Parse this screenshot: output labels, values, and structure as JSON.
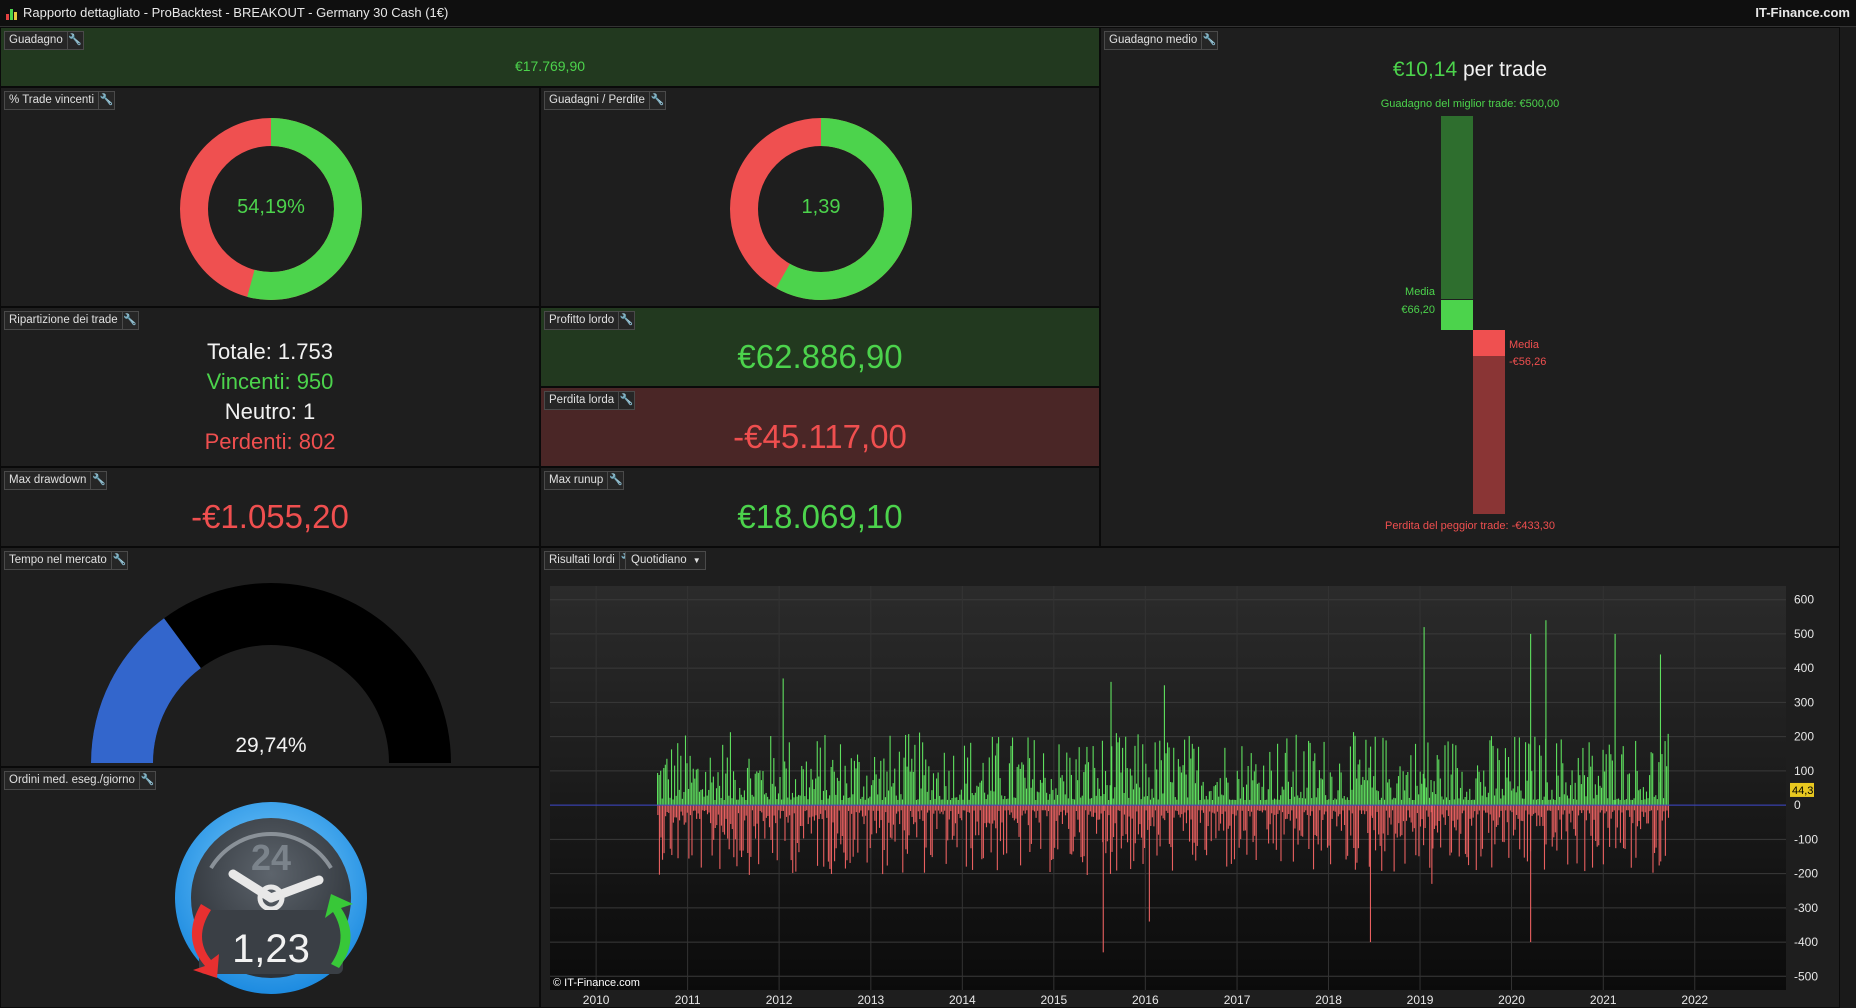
{
  "window": {
    "title": "Rapporto dettagliato - ProBacktest - BREAKOUT - Germany 30 Cash (1€)",
    "brand": "IT-Finance.com"
  },
  "colors": {
    "profit": "#4cd34c",
    "loss": "#ef4f4f",
    "gauge": "#3366cc",
    "panel_profit": "#22391f",
    "panel_loss": "#4a2626"
  },
  "guadagno": {
    "title": "Guadagno",
    "value": "€17.769,90"
  },
  "trade_vincenti": {
    "title": "% Trade vincenti",
    "value": "54,19%",
    "fraction": 0.5419
  },
  "guadagni_perdite": {
    "title": "Guadagni / Perdite",
    "value": "1,39",
    "fraction": 0.582
  },
  "ripartizione": {
    "title": "Ripartizione dei trade",
    "totale": "Totale: 1.753",
    "vincenti": "Vincenti: 950",
    "neutro": "Neutro: 1",
    "perdenti": "Perdenti: 802"
  },
  "profitto_lordo": {
    "title": "Profitto lordo",
    "value": "€62.886,90"
  },
  "perdita_lorda": {
    "title": "Perdita lorda",
    "value": "-€45.117,00"
  },
  "max_drawdown": {
    "title": "Max drawdown",
    "value": "-€1.055,20"
  },
  "max_runup": {
    "title": "Max runup",
    "value": "€18.069,10"
  },
  "guadagno_medio": {
    "title": "Guadagno medio",
    "value": "€10,14",
    "suffix": "per trade",
    "best_label": "Guadagno del miglior trade: €500,00",
    "worst_label": "Perdita del peggior trade: -€433,30",
    "media_label": "Media",
    "avg_win": "€66,20",
    "avg_loss": "-€56,26",
    "best": 500.0,
    "worst": -433.3,
    "avg_win_value": 66.2,
    "avg_loss_value": -56.26
  },
  "tempo_mercato": {
    "title": "Tempo nel mercato",
    "value": "29,74%",
    "fraction": 0.2974
  },
  "ordini": {
    "title": "Ordini med. eseg./giorno",
    "value": "1,23",
    "clock_label": "24",
    "icon": "clock-icon"
  },
  "risultati": {
    "title": "Risultati lordi",
    "period": "Quotidiano",
    "copyright": "© IT-Finance.com",
    "last_value": "44,3"
  },
  "chart_data": {
    "type": "bar",
    "title": "Risultati lordi",
    "x_ticks": [
      "2010",
      "2011",
      "2012",
      "2013",
      "2014",
      "2015",
      "2016",
      "2017",
      "2018",
      "2019",
      "2020",
      "2021",
      "2022"
    ],
    "y_ticks": [
      "600",
      "500",
      "400",
      "300",
      "200",
      "100",
      "0",
      "-100",
      "-200",
      "-300",
      "-400",
      "-500"
    ],
    "ylim": [
      -500,
      600
    ],
    "xlim": [
      "2009-07-01",
      "2022-12-31"
    ],
    "data_range": [
      "2010-09-01",
      "2021-09-15"
    ],
    "positive_color": "#5fe05f",
    "negative_color": "#e86060",
    "peaks": [
      {
        "x": "2012-01",
        "y": 370
      },
      {
        "x": "2015-08",
        "y": 360
      },
      {
        "x": "2016-03",
        "y": 350
      },
      {
        "x": "2019-01",
        "y": 520
      },
      {
        "x": "2020-03",
        "y": 500
      },
      {
        "x": "2020-05",
        "y": 540
      },
      {
        "x": "2021-02",
        "y": 500
      },
      {
        "x": "2021-08",
        "y": 440
      },
      {
        "x": "2015-07",
        "y": -430
      },
      {
        "x": "2016-01",
        "y": -340
      },
      {
        "x": "2018-06",
        "y": -400
      },
      {
        "x": "2020-03",
        "y": -400
      },
      {
        "x": "2019-02",
        "y": -230
      }
    ],
    "note": "Daily gross results per trade; individual bars are estimated from the picture."
  }
}
